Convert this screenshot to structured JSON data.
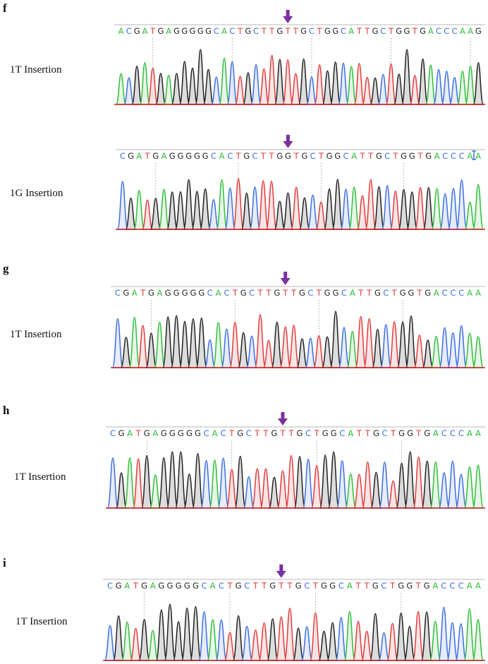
{
  "base_colors": {
    "A": "#2fbf3a",
    "C": "#3b6fe0",
    "G": "#222222",
    "T": "#e23b3b"
  },
  "arrow_color": "#7b2fa0",
  "panels": [
    {
      "letter": "f",
      "label": "1T Insertion",
      "sequence": "ACGATGAGGGGGCACTGCTTGTTGCTGGCATTGCTGGTGACCCAAG",
      "arrow_index": 21,
      "cursor": false
    },
    {
      "letter": "",
      "label": "1G Insertion",
      "sequence": "CGATGAGGGGGCACTGCTTGGTGCTGGCATTGCTGGTGACCCAA",
      "arrow_index": 20,
      "cursor": true
    },
    {
      "letter": "g",
      "label": "1T Insertion",
      "sequence": "CGATGAGGGGGCACTGCTTGTTGCTGGCATTGCTGGTGACCCAA",
      "arrow_index": 20,
      "cursor": false
    },
    {
      "letter": "h",
      "label": "1T Insertion",
      "sequence": "CGATGAGGGGGCACTGCTTGTTGCTGGCATTGCTGGTGACCCAA",
      "arrow_index": 20,
      "cursor": false
    },
    {
      "letter": "i",
      "label": "1T Insertion",
      "sequence": "CGATGAGGGGGCACTGCTTGTTGCTGGCATTGCTGGTGACCCAA",
      "arrow_index": 20,
      "cursor": false
    }
  ]
}
